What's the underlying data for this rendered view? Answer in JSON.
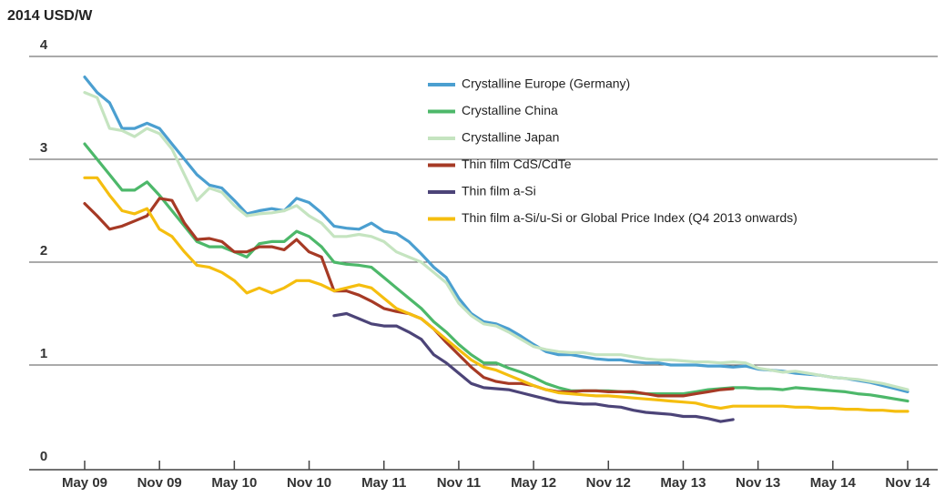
{
  "chart_data": {
    "type": "line",
    "y_label": "2014 USD/W",
    "categories": [
      "May 09",
      null,
      null,
      null,
      null,
      null,
      "Nov 09",
      null,
      null,
      null,
      null,
      null,
      "May 10",
      null,
      null,
      null,
      null,
      null,
      "Nov 10",
      null,
      null,
      null,
      null,
      null,
      "May 11",
      null,
      null,
      null,
      null,
      null,
      "Nov 11",
      null,
      null,
      null,
      null,
      null,
      "May 12",
      null,
      null,
      null,
      null,
      null,
      "Nov 12",
      null,
      null,
      null,
      null,
      null,
      "May 13",
      null,
      null,
      null,
      null,
      null,
      "Nov 13",
      null,
      null,
      null,
      null,
      null,
      "May 14",
      null,
      null,
      null,
      null,
      null,
      "Nov 14"
    ],
    "ylim": [
      0,
      4
    ],
    "yticks": [
      0,
      1,
      2,
      3,
      4
    ],
    "grid": true,
    "series": [
      {
        "name": "Crystalline Europe (Germany)",
        "color": "#4b9fd0",
        "values": [
          3.8,
          3.65,
          3.55,
          3.3,
          3.3,
          3.35,
          3.3,
          3.15,
          3.0,
          2.85,
          2.75,
          2.72,
          2.6,
          2.47,
          2.5,
          2.52,
          2.5,
          2.62,
          2.58,
          2.48,
          2.35,
          2.33,
          2.32,
          2.38,
          2.3,
          2.28,
          2.2,
          2.08,
          1.95,
          1.85,
          1.65,
          1.5,
          1.42,
          1.4,
          1.35,
          1.28,
          1.2,
          1.13,
          1.1,
          1.1,
          1.08,
          1.06,
          1.05,
          1.05,
          1.03,
          1.02,
          1.02,
          1.0,
          1.0,
          1.0,
          0.99,
          0.99,
          0.98,
          0.99,
          0.96,
          0.95,
          0.94,
          0.92,
          0.91,
          0.9,
          0.88,
          0.87,
          0.85,
          0.83,
          0.8,
          0.77,
          0.74
        ]
      },
      {
        "name": "Crystalline China",
        "color": "#4db86a",
        "values": [
          3.15,
          3.0,
          2.85,
          2.7,
          2.7,
          2.78,
          2.65,
          2.5,
          2.35,
          2.2,
          2.15,
          2.15,
          2.1,
          2.05,
          2.18,
          2.2,
          2.2,
          2.3,
          2.25,
          2.15,
          2.0,
          1.98,
          1.97,
          1.95,
          1.85,
          1.75,
          1.65,
          1.55,
          1.42,
          1.32,
          1.2,
          1.1,
          1.02,
          1.02,
          0.97,
          0.93,
          0.88,
          0.82,
          0.78,
          0.75,
          0.75,
          0.75,
          0.75,
          0.74,
          0.73,
          0.72,
          0.72,
          0.72,
          0.72,
          0.74,
          0.76,
          0.77,
          0.78,
          0.78,
          0.77,
          0.77,
          0.76,
          0.78,
          0.77,
          0.76,
          0.75,
          0.74,
          0.72,
          0.71,
          0.69,
          0.67,
          0.65
        ]
      },
      {
        "name": "Crystalline Japan",
        "color": "#c5e4c0",
        "values": [
          3.65,
          3.6,
          3.3,
          3.28,
          3.22,
          3.3,
          3.25,
          3.1,
          2.85,
          2.6,
          2.72,
          2.68,
          2.55,
          2.45,
          2.47,
          2.48,
          2.5,
          2.55,
          2.45,
          2.38,
          2.25,
          2.25,
          2.27,
          2.25,
          2.2,
          2.1,
          2.05,
          2.0,
          1.9,
          1.8,
          1.6,
          1.48,
          1.4,
          1.38,
          1.32,
          1.25,
          1.18,
          1.15,
          1.13,
          1.12,
          1.12,
          1.1,
          1.1,
          1.1,
          1.08,
          1.06,
          1.05,
          1.05,
          1.04,
          1.03,
          1.03,
          1.02,
          1.03,
          1.02,
          0.97,
          0.95,
          0.93,
          0.94,
          0.92,
          0.9,
          0.88,
          0.87,
          0.86,
          0.84,
          0.82,
          0.79,
          0.76
        ]
      },
      {
        "name": "Thin film CdS/CdTe",
        "color": "#a63a25",
        "values": [
          2.57,
          2.45,
          2.32,
          2.35,
          2.4,
          2.45,
          2.62,
          2.6,
          2.38,
          2.22,
          2.23,
          2.2,
          2.1,
          2.1,
          2.15,
          2.15,
          2.12,
          2.22,
          2.1,
          2.05,
          1.72,
          1.72,
          1.68,
          1.62,
          1.55,
          1.52,
          1.5,
          1.45,
          1.35,
          1.22,
          1.1,
          0.98,
          0.88,
          0.84,
          0.82,
          0.82,
          0.8,
          0.76,
          0.74,
          0.74,
          0.75,
          0.75,
          0.74,
          0.74,
          0.74,
          0.72,
          0.7,
          0.7,
          0.7,
          0.72,
          0.74,
          0.76,
          0.77,
          null,
          null,
          null,
          null,
          null,
          null,
          null,
          null,
          null,
          null,
          null,
          null,
          null,
          null
        ]
      },
      {
        "name": "Thin film a-Si",
        "color": "#4c4478",
        "values": [
          null,
          null,
          null,
          null,
          null,
          null,
          null,
          null,
          null,
          null,
          null,
          null,
          null,
          null,
          null,
          null,
          null,
          null,
          null,
          null,
          1.48,
          1.5,
          1.45,
          1.4,
          1.38,
          1.38,
          1.32,
          1.25,
          1.1,
          1.02,
          0.92,
          0.82,
          0.78,
          0.77,
          0.76,
          0.73,
          0.7,
          0.67,
          0.64,
          0.63,
          0.62,
          0.62,
          0.6,
          0.59,
          0.56,
          0.54,
          0.53,
          0.52,
          0.5,
          0.5,
          0.48,
          0.45,
          0.47,
          null,
          null,
          null,
          null,
          null,
          null,
          null,
          null,
          null,
          null,
          null,
          null,
          null,
          null
        ]
      },
      {
        "name": "Thin film a-Si/u-Si or Global Price Index (Q4 2013 onwards)",
        "color": "#f5be0f",
        "values": [
          2.82,
          2.82,
          2.65,
          2.5,
          2.47,
          2.52,
          2.32,
          2.25,
          2.1,
          1.97,
          1.95,
          1.9,
          1.82,
          1.7,
          1.75,
          1.7,
          1.75,
          1.82,
          1.82,
          1.78,
          1.72,
          1.75,
          1.78,
          1.75,
          1.65,
          1.55,
          1.5,
          1.45,
          1.35,
          1.25,
          1.15,
          1.05,
          0.98,
          0.95,
          0.9,
          0.85,
          0.8,
          0.76,
          0.73,
          0.72,
          0.71,
          0.7,
          0.7,
          0.69,
          0.68,
          0.67,
          0.66,
          0.65,
          0.64,
          0.63,
          0.6,
          0.58,
          0.6,
          0.6,
          0.6,
          0.6,
          0.6,
          0.59,
          0.59,
          0.58,
          0.58,
          0.57,
          0.57,
          0.56,
          0.56,
          0.55,
          0.55
        ]
      }
    ]
  }
}
